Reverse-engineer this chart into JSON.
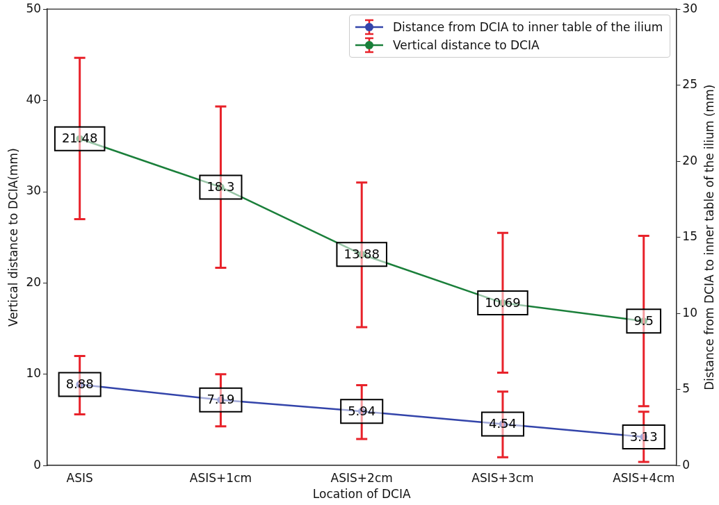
{
  "chart_data": {
    "type": "line",
    "xlabel": "Location of DCIA",
    "ylabel": "Vertical distance to DCIA(mm)",
    "y2label": "Distance from DCIA to inner table of the ilium (mm)",
    "categories": [
      "ASIS",
      "ASIS+1cm",
      "ASIS+2cm",
      "ASIS+3cm",
      "ASIS+4cm"
    ],
    "series": [
      {
        "name": "Distance from DCIA to inner table of the ilium",
        "color": "#3344aa",
        "values": [
          8.88,
          7.19,
          5.94,
          4.54,
          3.13
        ],
        "errors": [
          [
            5.6,
            12.0
          ],
          [
            4.3,
            10.0
          ],
          [
            2.9,
            8.8
          ],
          [
            0.9,
            8.1
          ],
          [
            0.4,
            5.9
          ]
        ]
      },
      {
        "name": "Vertical distance to DCIA",
        "color": "#1a7f3a",
        "axis": "y2",
        "values": [
          21.48,
          18.3,
          13.88,
          10.69,
          9.5
        ],
        "errors": [
          [
            16.2,
            26.8
          ],
          [
            13.0,
            23.6
          ],
          [
            9.1,
            18.6
          ],
          [
            6.1,
            15.3
          ],
          [
            3.9,
            15.1
          ]
        ]
      }
    ],
    "ylim": [
      0,
      50
    ],
    "yticks": [
      0,
      10,
      20,
      30,
      40,
      50
    ],
    "y2lim": [
      0,
      30
    ],
    "y2ticks": [
      0,
      5,
      10,
      15,
      20,
      25,
      30
    ],
    "data_labels": true,
    "legend": "top right",
    "grid": false,
    "marker": "circle",
    "line_style": "solid"
  }
}
